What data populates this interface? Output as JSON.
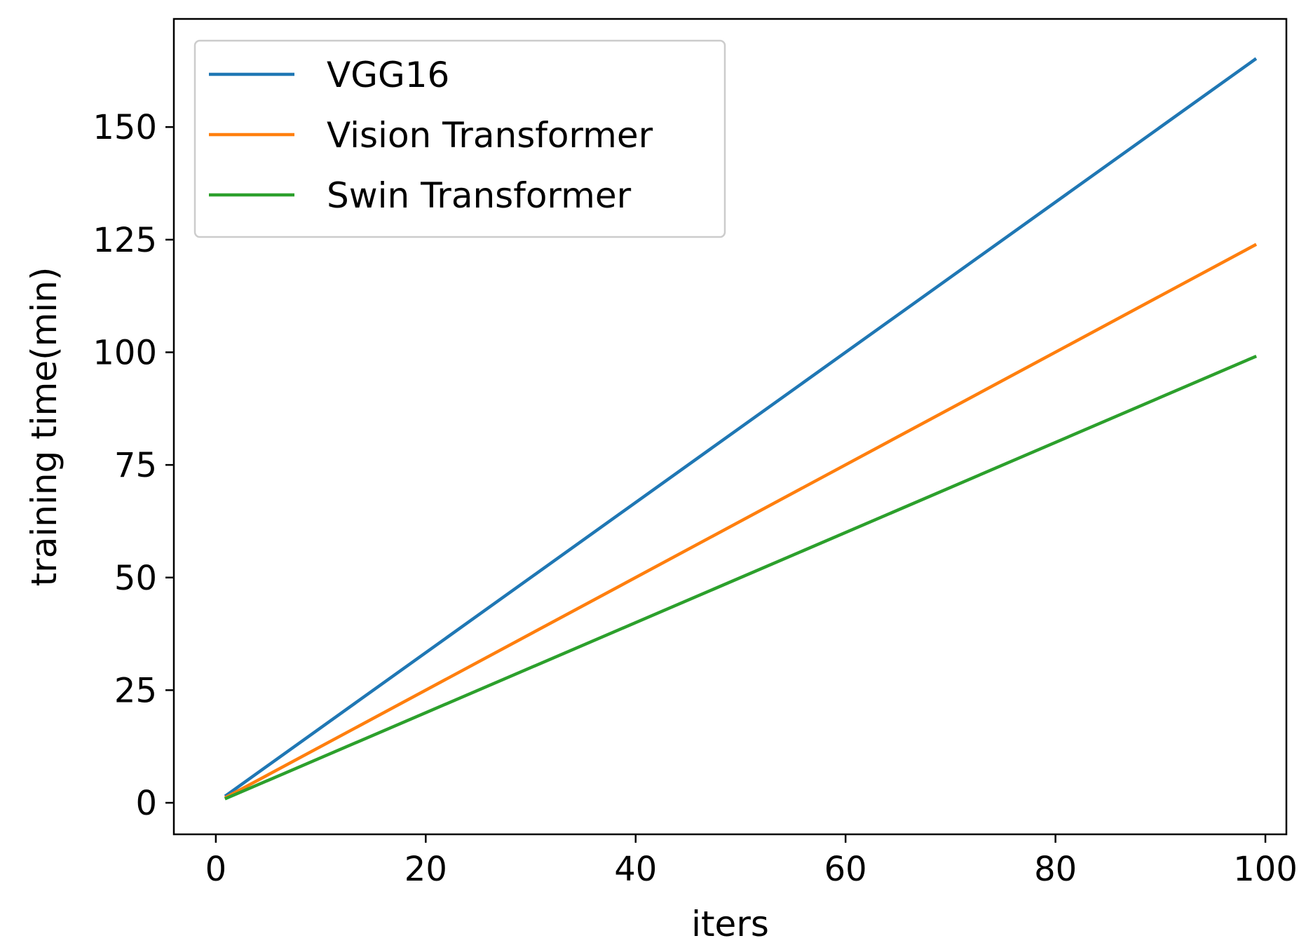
{
  "chart_data": {
    "type": "line",
    "title": "",
    "xlabel": "iters",
    "ylabel": "training time(min)",
    "xlim": [
      -4,
      102
    ],
    "ylim": [
      -7,
      174
    ],
    "xticks": [
      0,
      20,
      40,
      60,
      80,
      100
    ],
    "yticks": [
      0,
      25,
      50,
      75,
      100,
      125,
      150
    ],
    "grid": false,
    "legend_position": "top-left",
    "series": [
      {
        "name": "VGG16",
        "color": "#1f77b4",
        "x": [
          1,
          99
        ],
        "y": [
          1.67,
          165.0
        ]
      },
      {
        "name": "Vision Transformer",
        "color": "#ff7f0e",
        "x": [
          1,
          99
        ],
        "y": [
          1.25,
          123.8
        ]
      },
      {
        "name": "Swin Transformer",
        "color": "#2ca02c",
        "x": [
          1,
          99
        ],
        "y": [
          1.0,
          99.0
        ]
      }
    ]
  }
}
